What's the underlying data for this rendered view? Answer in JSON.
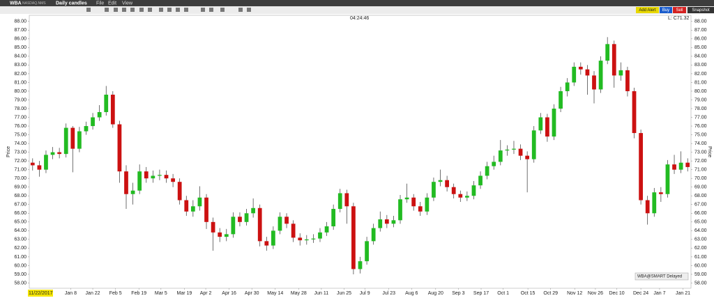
{
  "toolbar": {
    "symbol": "WBA",
    "exchange": "NASDAQ.NMS",
    "chart_kind": "Daily candles",
    "menus": [
      "File",
      "Edit",
      "View"
    ],
    "buttons": [
      "Add Alert",
      "Buy",
      "Sell",
      "Snapshot"
    ]
  },
  "chart_data": {
    "type": "candlestick",
    "clock": "04:24:46",
    "last_label": "L: C71.32",
    "source_label": "WBA@SMART Delayed",
    "cursor_date": "11/22/2017",
    "y_label": "Price",
    "up_color": "#22bb22",
    "down_color": "#cc1111",
    "ylim": [
      57.4,
      88.7
    ],
    "yticks": [
      {
        "value": 58,
        "label": "58.00"
      },
      {
        "value": 59,
        "label": "59.00"
      },
      {
        "value": 60,
        "label": "60.00"
      },
      {
        "value": 61,
        "label": "61.00"
      },
      {
        "value": 62,
        "label": "62.00"
      },
      {
        "value": 63,
        "label": "63.00"
      },
      {
        "value": 64,
        "label": "64.00"
      },
      {
        "value": 65,
        "label": "65.00"
      },
      {
        "value": 66,
        "label": "66.00"
      },
      {
        "value": 67,
        "label": "67.00"
      },
      {
        "value": 68,
        "label": "68.00"
      },
      {
        "value": 69,
        "label": "69.00"
      },
      {
        "value": 70,
        "label": "70.00"
      },
      {
        "value": 71,
        "label": "71.00"
      },
      {
        "value": 72,
        "label": "72.00"
      },
      {
        "value": 73,
        "label": "73.00"
      },
      {
        "value": 74,
        "label": "74.00"
      },
      {
        "value": 75,
        "label": "75.00"
      },
      {
        "value": 76,
        "label": "76.00"
      },
      {
        "value": 77,
        "label": "77.00"
      },
      {
        "value": 78,
        "label": "78.00"
      },
      {
        "value": 79,
        "label": "79.00"
      },
      {
        "value": 80,
        "label": "80.00"
      },
      {
        "value": 81,
        "label": "81.00"
      },
      {
        "value": 82,
        "label": "82.00"
      },
      {
        "value": 83,
        "label": "83.00"
      },
      {
        "value": 84,
        "label": "84.00"
      },
      {
        "value": 85,
        "label": "85.00"
      },
      {
        "value": 86,
        "label": "86.00"
      },
      {
        "value": 87,
        "label": "87.00"
      },
      {
        "value": 88,
        "label": "88.00"
      }
    ],
    "xlim": [
      0,
      99
    ],
    "xticks": [
      {
        "value": 6.2,
        "label": "Jan 8"
      },
      {
        "value": 9.5,
        "label": "Jan 22"
      },
      {
        "value": 12.9,
        "label": "Feb 5"
      },
      {
        "value": 16.4,
        "label": "Feb 19"
      },
      {
        "value": 19.7,
        "label": "Mar 5"
      },
      {
        "value": 23.2,
        "label": "Mar 19"
      },
      {
        "value": 26.4,
        "label": "Apr 2"
      },
      {
        "value": 29.9,
        "label": "Apr 16"
      },
      {
        "value": 33.3,
        "label": "Apr 30"
      },
      {
        "value": 36.8,
        "label": "May 14"
      },
      {
        "value": 40.3,
        "label": "May 28"
      },
      {
        "value": 43.7,
        "label": "Jun 11"
      },
      {
        "value": 47.1,
        "label": "Jun 25"
      },
      {
        "value": 50.2,
        "label": "Jul 9"
      },
      {
        "value": 53.8,
        "label": "Jul 23"
      },
      {
        "value": 57.2,
        "label": "Aug 6"
      },
      {
        "value": 60.8,
        "label": "Aug 20"
      },
      {
        "value": 64.2,
        "label": "Sep 3"
      },
      {
        "value": 67.6,
        "label": "Sep 17"
      },
      {
        "value": 70.9,
        "label": "Oct 1"
      },
      {
        "value": 74.6,
        "label": "Oct 15"
      },
      {
        "value": 78.0,
        "label": "Oct 29"
      },
      {
        "value": 81.6,
        "label": "Nov 12"
      },
      {
        "value": 84.7,
        "label": "Nov 26"
      },
      {
        "value": 87.9,
        "label": "Dec 10"
      },
      {
        "value": 91.5,
        "label": "Dec 24"
      },
      {
        "value": 94.3,
        "label": "Jan 7"
      },
      {
        "value": 97.8,
        "label": "Jan 21"
      }
    ],
    "open": [
      71.8,
      71.5,
      71.0,
      72.7,
      73.0,
      72.8,
      75.8,
      73.4,
      75.4,
      76.0,
      77.0,
      77.6,
      79.6,
      76.2,
      70.8,
      68.2,
      68.6,
      70.8,
      70.0,
      70.3,
      70.4,
      70.0,
      69.6,
      67.5,
      66.2,
      66.8,
      67.8,
      65.0,
      63.8,
      63.3,
      63.6,
      65.6,
      65.0,
      66.0,
      66.6,
      62.8,
      62.3,
      64.0,
      65.6,
      64.8,
      63.2,
      62.9,
      63.0,
      63.1,
      63.8,
      64.5,
      66.5,
      68.3,
      66.8,
      59.6,
      60.5,
      62.8,
      64.3,
      65.3,
      64.8,
      65.2,
      67.6,
      67.8,
      66.8,
      66.2,
      67.8,
      69.6,
      69.8,
      69.0,
      68.2,
      67.8,
      68.0,
      69.2,
      70.3,
      71.4,
      71.9,
      73.2,
      73.3,
      73.4,
      72.6,
      72.2,
      75.5,
      77.0,
      74.8,
      78.0,
      80.0,
      81.0,
      82.8,
      82.5,
      81.8,
      80.2,
      83.5,
      85.4,
      81.8,
      82.4,
      80.0,
      75.2,
      67.5,
      66.0,
      68.4,
      68.2,
      71.6,
      71.0,
      71.8
    ],
    "high": [
      72.3,
      72.0,
      73.2,
      73.6,
      73.5,
      76.3,
      76.0,
      75.9,
      76.5,
      77.5,
      78.4,
      80.6,
      80.0,
      76.6,
      71.5,
      69.5,
      71.6,
      71.3,
      70.9,
      71.0,
      70.9,
      70.5,
      70.0,
      68.0,
      67.5,
      69.1,
      68.2,
      65.5,
      64.3,
      64.2,
      66.1,
      66.1,
      66.5,
      67.7,
      67.0,
      63.3,
      64.5,
      66.1,
      66.0,
      65.2,
      63.7,
      63.5,
      63.6,
      64.3,
      65.0,
      67.0,
      68.8,
      68.7,
      67.2,
      61.0,
      63.3,
      64.8,
      66.2,
      65.8,
      65.7,
      68.1,
      69.4,
      68.2,
      67.3,
      68.3,
      70.1,
      71.0,
      70.3,
      69.4,
      68.6,
      68.5,
      69.7,
      70.8,
      71.9,
      72.6,
      74.4,
      73.8,
      74.3,
      73.9,
      73.1,
      76.0,
      77.5,
      77.4,
      78.5,
      80.5,
      81.5,
      83.3,
      83.3,
      83.0,
      82.3,
      84.0,
      86.2,
      85.8,
      83.3,
      82.8,
      80.4,
      75.6,
      68.0,
      68.9,
      69.0,
      72.1,
      72.7,
      73.1,
      72.3
    ],
    "low": [
      70.9,
      70.2,
      70.6,
      72.2,
      72.3,
      72.4,
      70.7,
      73.0,
      75.0,
      75.6,
      76.6,
      77.2,
      75.8,
      69.5,
      66.5,
      67.0,
      68.2,
      69.5,
      69.5,
      69.8,
      69.5,
      69.0,
      67.0,
      65.7,
      65.6,
      66.3,
      64.2,
      61.7,
      62.7,
      62.8,
      63.2,
      64.5,
      64.6,
      65.5,
      62.2,
      61.7,
      61.9,
      63.6,
      64.3,
      62.7,
      62.3,
      62.4,
      62.6,
      62.7,
      63.4,
      64.1,
      66.1,
      64.8,
      59.0,
      59.1,
      60.1,
      62.4,
      63.9,
      64.3,
      64.4,
      64.8,
      67.2,
      66.3,
      65.7,
      65.8,
      67.4,
      69.1,
      68.5,
      67.7,
      67.3,
      67.4,
      67.6,
      68.8,
      69.9,
      71.0,
      71.5,
      72.6,
      72.8,
      72.1,
      68.4,
      71.8,
      75.1,
      74.2,
      74.4,
      77.6,
      79.4,
      80.6,
      81.9,
      79.6,
      78.6,
      79.8,
      83.1,
      80.4,
      81.2,
      79.4,
      74.6,
      67.0,
      64.7,
      65.6,
      67.3,
      67.8,
      70.5,
      70.6,
      70.8
    ],
    "close": [
      71.5,
      71.0,
      72.7,
      73.0,
      72.8,
      75.8,
      73.4,
      75.4,
      76.0,
      77.0,
      77.6,
      79.6,
      76.2,
      70.8,
      68.2,
      68.6,
      70.8,
      70.0,
      70.3,
      70.4,
      70.0,
      69.6,
      67.5,
      66.2,
      66.8,
      67.8,
      65.0,
      63.8,
      63.3,
      63.6,
      65.6,
      65.0,
      66.0,
      66.6,
      62.8,
      62.3,
      64.0,
      65.6,
      64.8,
      63.2,
      62.9,
      63.0,
      63.1,
      63.8,
      64.5,
      66.5,
      68.3,
      66.8,
      59.6,
      60.5,
      62.8,
      64.3,
      65.3,
      64.8,
      65.2,
      67.6,
      67.8,
      66.8,
      66.2,
      67.8,
      69.6,
      69.8,
      69.0,
      68.2,
      67.8,
      68.0,
      69.2,
      70.3,
      71.4,
      71.9,
      73.2,
      73.3,
      73.4,
      72.6,
      72.2,
      75.5,
      77.0,
      74.8,
      78.0,
      80.0,
      81.0,
      82.8,
      82.5,
      81.8,
      80.2,
      83.5,
      85.4,
      81.8,
      82.4,
      80.0,
      75.2,
      67.5,
      66.0,
      68.4,
      68.2,
      71.6,
      71.0,
      71.8,
      71.3
    ]
  }
}
